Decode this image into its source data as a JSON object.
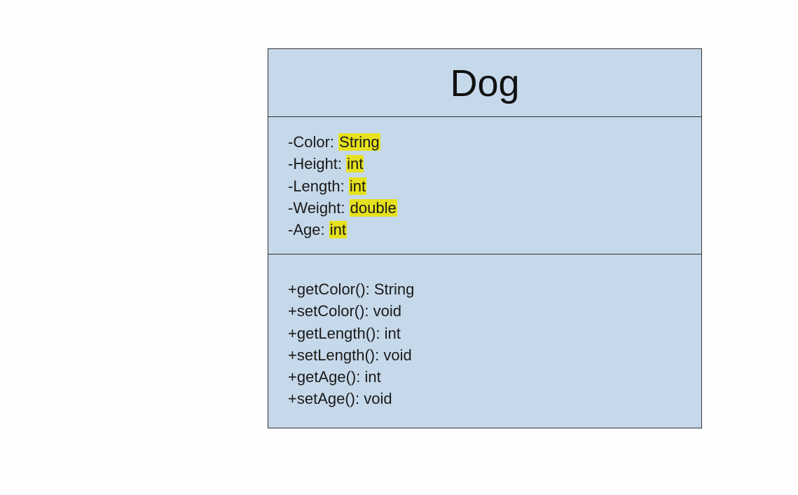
{
  "class_box": {
    "name": "Dog",
    "attributes": [
      {
        "name": "-Color:",
        "type": "String"
      },
      {
        "name": "-Height:",
        "type": "int"
      },
      {
        "name": "-Length:",
        "type": "int"
      },
      {
        "name": "-Weight:",
        "type": "double"
      },
      {
        "name": "-Age:",
        "type": "int"
      }
    ],
    "operations": [
      "+getColor(): String",
      "+setColor(): void",
      "+getLength(): int",
      "+setLength(): void",
      "+getAge(): int",
      "+setAge(): void"
    ]
  },
  "colors": {
    "box_fill": "#c6d9ea",
    "border": "#333333",
    "highlight": "#e6e11e",
    "background": "#fefefe"
  }
}
